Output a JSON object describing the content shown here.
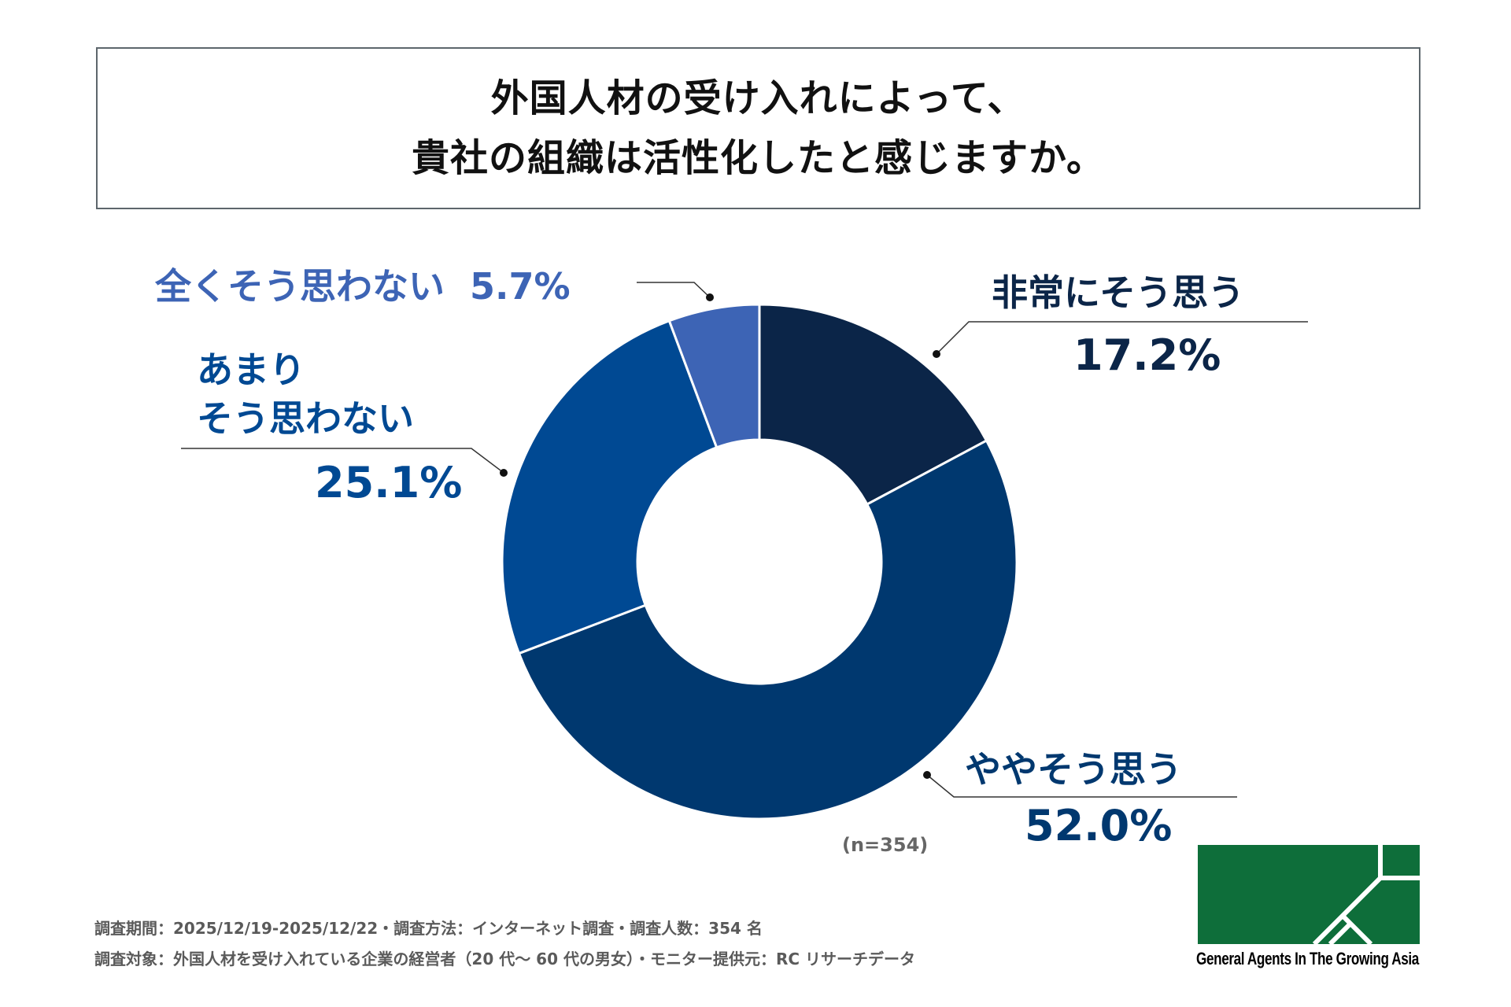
{
  "title": {
    "line1": "外国人材の受け入れによって、",
    "line2": "貴社の組織は活性化したと感じますか。"
  },
  "chart_data": {
    "type": "pie",
    "variant": "donut",
    "start": "top",
    "direction": "clockwise",
    "slices": [
      {
        "label": "非常にそう思う",
        "value": 17.2,
        "display": "17.2%",
        "color": "#0b2548"
      },
      {
        "label": "ややそう思う",
        "value": 52.0,
        "display": "52.0%",
        "color": "#00386f"
      },
      {
        "label_lines": [
          "あまり",
          "そう思わない"
        ],
        "value": 25.1,
        "display": "25.1%",
        "color": "#004993"
      },
      {
        "label": "全くそう思わない",
        "value": 5.7,
        "display": "5.7%",
        "color": "#3d64b5"
      }
    ],
    "sample": "(n=354)"
  },
  "footer": {
    "line1": "調査期間：2025/12/19-2025/12/22・調査方法：インターネット調査・調査人数：354 名",
    "line2": "調査対象：外国人材を受け入れている企業の経営者（20 代～ 60 代の男女）・モニター提供元：RC リサーチデータ"
  },
  "logo": {
    "text": "General Agents In The Growing Asia",
    "color": "#0e6e3a"
  }
}
